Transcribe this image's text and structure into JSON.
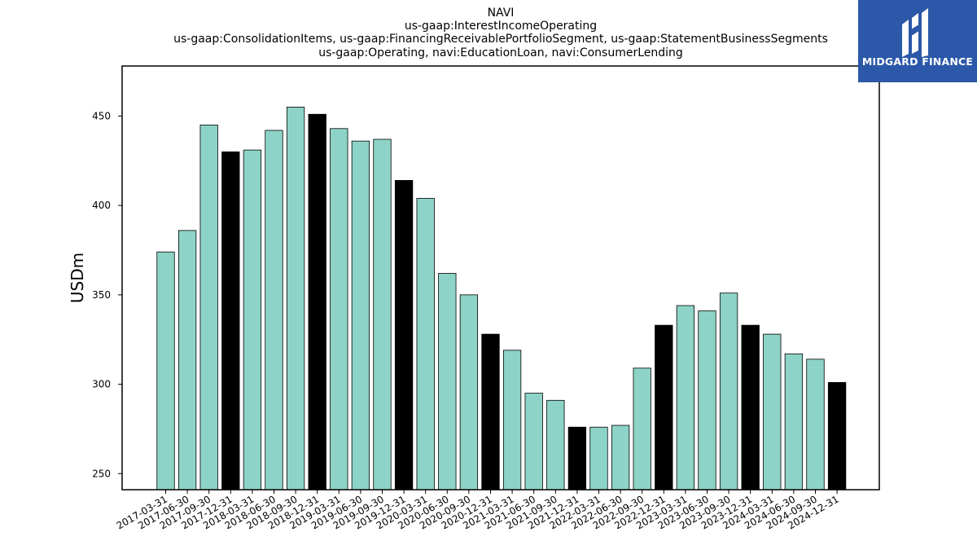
{
  "chart_data": {
    "type": "bar",
    "title_lines": [
      "NAVI",
      "us-gaap:InterestIncomeOperating",
      "us-gaap:ConsolidationItems, us-gaap:FinancingReceivablePortfolioSegment, us-gaap:StatementBusinessSegments",
      "us-gaap:Operating, navi:EducationLoan, navi:ConsumerLending"
    ],
    "xlabel": "",
    "ylabel": "USDm",
    "ylim": [
      241,
      478
    ],
    "yticks": [
      250,
      300,
      350,
      400,
      450
    ],
    "grid": false,
    "categories": [
      "2017-03-31",
      "2017-06-30",
      "2017-09-30",
      "2017-12-31",
      "2018-03-31",
      "2018-06-30",
      "2018-09-30",
      "2018-12-31",
      "2019-03-31",
      "2019-06-30",
      "2019-09-30",
      "2019-12-31",
      "2020-03-31",
      "2020-06-30",
      "2020-09-30",
      "2020-12-31",
      "2021-03-31",
      "2021-06-30",
      "2021-09-30",
      "2021-12-31",
      "2022-03-31",
      "2022-06-30",
      "2022-09-30",
      "2022-12-31",
      "2023-03-31",
      "2023-06-30",
      "2023-09-30",
      "2023-12-31",
      "2024-03-31",
      "2024-06-30",
      "2024-09-30",
      "2024-12-31"
    ],
    "values": [
      374,
      386,
      445,
      430,
      431,
      442,
      455,
      451,
      443,
      436,
      437,
      414,
      404,
      362,
      350,
      328,
      319,
      295,
      291,
      276,
      276,
      277,
      309,
      333,
      344,
      341,
      351,
      333,
      328,
      317,
      314,
      301
    ],
    "colors": {
      "quarter": "#8dd3c7",
      "year_end": "#000000",
      "edge": "#000000"
    }
  },
  "logo": {
    "text": "MIDGARD FINANCE",
    "background": "#2b58a8"
  }
}
